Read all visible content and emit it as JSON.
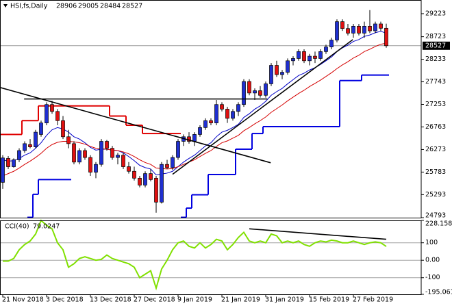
{
  "chart_data": [
    {
      "type": "candlestick",
      "title": "HSI,fs,Daily",
      "categories": [
        "21 Nov 2018",
        null,
        null,
        null,
        null,
        null,
        null,
        null,
        "3 Dec 2018",
        null,
        null,
        null,
        null,
        null,
        null,
        null,
        "13 Dec 2018",
        null,
        null,
        null,
        null,
        null,
        null,
        null,
        "27 Dec 2018",
        null,
        null,
        null,
        null,
        null,
        null,
        null,
        "9 Jan 2019",
        null,
        null,
        null,
        null,
        null,
        null,
        null,
        "21 Jan 2019",
        null,
        null,
        null,
        null,
        null,
        null,
        null,
        "31 Jan 2019",
        null,
        null,
        null,
        null,
        null,
        null,
        null,
        "15 Feb 2019",
        null,
        null,
        null,
        null,
        null,
        null,
        null,
        "27 Feb 2019",
        null,
        null,
        null,
        null,
        null,
        null
      ],
      "ohlc": [
        [
          25560,
          26150,
          25420,
          26090
        ],
        [
          26080,
          26130,
          25850,
          25900
        ],
        [
          25900,
          26080,
          25880,
          26050
        ],
        [
          26050,
          26300,
          26000,
          26250
        ],
        [
          26250,
          26450,
          26200,
          26400
        ],
        [
          26380,
          26500,
          26300,
          26330
        ],
        [
          26330,
          26700,
          26300,
          26650
        ],
        [
          26600,
          26900,
          26550,
          26850
        ],
        [
          26850,
          27300,
          26800,
          27250
        ],
        [
          27250,
          27330,
          27050,
          27100
        ],
        [
          27100,
          27150,
          26800,
          26900
        ],
        [
          26900,
          27000,
          26500,
          26550
        ],
        [
          26550,
          26700,
          26300,
          26400
        ],
        [
          26400,
          26450,
          25950,
          26000
        ],
        [
          26000,
          26300,
          25950,
          26250
        ],
        [
          26250,
          26300,
          26050,
          26100
        ],
        [
          26100,
          26150,
          25700,
          25780
        ],
        [
          25780,
          26000,
          25650,
          25950
        ],
        [
          25950,
          26500,
          25900,
          26450
        ],
        [
          26450,
          26480,
          26250,
          26300
        ],
        [
          26300,
          26350,
          26050,
          26100
        ],
        [
          26100,
          26200,
          25950,
          26150
        ],
        [
          26150,
          26200,
          25850,
          25900
        ],
        [
          25900,
          26000,
          25750,
          25800
        ],
        [
          25800,
          25900,
          25600,
          25650
        ],
        [
          25650,
          25700,
          25450,
          25500
        ],
        [
          25500,
          25800,
          25450,
          25750
        ],
        [
          25750,
          25850,
          25580,
          25620
        ],
        [
          25650,
          25700,
          24900,
          25130
        ],
        [
          25130,
          26000,
          25100,
          25950
        ],
        [
          25950,
          26050,
          25850,
          25880
        ],
        [
          25880,
          26150,
          25830,
          26100
        ],
        [
          26100,
          26500,
          26050,
          26450
        ],
        [
          26450,
          26600,
          26350,
          26550
        ],
        [
          26550,
          26650,
          26400,
          26450
        ],
        [
          26450,
          26650,
          26350,
          26600
        ],
        [
          26600,
          26800,
          26550,
          26750
        ],
        [
          26750,
          26950,
          26700,
          26900
        ],
        [
          26900,
          26950,
          26800,
          26850
        ],
        [
          26850,
          27350,
          26800,
          27250
        ],
        [
          27250,
          27300,
          27100,
          27150
        ],
        [
          27150,
          27200,
          26850,
          26950
        ],
        [
          26950,
          27150,
          26900,
          27100
        ],
        [
          27100,
          27300,
          27000,
          27250
        ],
        [
          27250,
          27800,
          27200,
          27750
        ],
        [
          27750,
          27800,
          27450,
          27500
        ],
        [
          27500,
          27600,
          27350,
          27550
        ],
        [
          27550,
          27650,
          27400,
          27450
        ],
        [
          27450,
          27750,
          27400,
          27700
        ],
        [
          27700,
          28150,
          27650,
          28100
        ],
        [
          28100,
          28200,
          27850,
          27900
        ],
        [
          27900,
          28000,
          27800,
          27950
        ],
        [
          27950,
          28250,
          27900,
          28200
        ],
        [
          28200,
          28300,
          28100,
          28250
        ],
        [
          28250,
          28450,
          28200,
          28400
        ],
        [
          28400,
          28450,
          28150,
          28200
        ],
        [
          28200,
          28350,
          28100,
          28300
        ],
        [
          28300,
          28400,
          28150,
          28250
        ],
        [
          28250,
          28450,
          28200,
          28400
        ],
        [
          28400,
          28550,
          28350,
          28500
        ],
        [
          28500,
          28700,
          28450,
          28650
        ],
        [
          28650,
          29100,
          28600,
          29050
        ],
        [
          29050,
          29100,
          28850,
          28900
        ],
        [
          28900,
          29000,
          28750,
          28800
        ],
        [
          28800,
          29000,
          28700,
          28950
        ],
        [
          28950,
          29000,
          28750,
          28800
        ],
        [
          28800,
          29050,
          28700,
          28950
        ],
        [
          28950,
          29300,
          28800,
          28850
        ],
        [
          28850,
          29050,
          28800,
          29000
        ],
        [
          29000,
          29050,
          28850,
          28906
        ],
        [
          28906,
          29005,
          28484,
          28527
        ]
      ],
      "up_color": "#1f2fd0",
      "down_color": "#e01010",
      "lines": [
        {
          "color": "#0000c8",
          "values": [
            26050,
            26020,
            26030,
            26080,
            26150,
            26200,
            26300,
            26420,
            26580,
            26700,
            26750,
            26720,
            26650,
            26550,
            26500,
            26420,
            26320,
            26260,
            26280,
            26280,
            26260,
            26250,
            26200,
            26120,
            26030,
            25930,
            25880,
            25850,
            25720,
            25740,
            25760,
            25800,
            25900,
            26000,
            26080,
            26150,
            26250,
            26350,
            26420,
            26550,
            26650,
            26690,
            26750,
            26820,
            26970,
            27050,
            27150,
            27220,
            27320,
            27450,
            27530,
            27600,
            27700,
            27790,
            27880,
            27930,
            28000,
            28050,
            28120,
            28200,
            28280,
            28400,
            28480,
            28540,
            28620,
            28660,
            28730,
            28760,
            28810,
            28840,
            28800
          ]
        },
        {
          "color": "#d40000",
          "values": [
            25700,
            25750,
            25800,
            25870,
            25950,
            26020,
            26100,
            26190,
            26300,
            26380,
            26430,
            26450,
            26450,
            26440,
            26420,
            26390,
            26340,
            26300,
            26290,
            26280,
            26260,
            26250,
            26220,
            26180,
            26120,
            26050,
            25990,
            25950,
            25870,
            25860,
            25850,
            25860,
            25900,
            25950,
            26000,
            26050,
            26120,
            26190,
            26250,
            26340,
            26420,
            26460,
            26520,
            26580,
            26680,
            26750,
            26830,
            26900,
            26980,
            27080,
            27160,
            27240,
            27330,
            27410,
            27490,
            27560,
            27640,
            27710,
            27780,
            27860,
            27940,
            28030,
            28110,
            28180,
            28260,
            28320,
            28400,
            28450,
            28510,
            28560,
            28580
          ]
        }
      ],
      "steps": [
        {
          "color": "#e00000",
          "values": [
            26600,
            26600,
            26600,
            26600,
            26900,
            26900,
            26900,
            27220,
            27220,
            27220,
            27220,
            27220,
            27220,
            27220,
            27220,
            27220,
            27220,
            27220,
            27220,
            27220,
            27000,
            27000,
            27000,
            26800,
            26800,
            26800,
            26620,
            26620,
            26620,
            26620,
            26620,
            26620,
            26620,
            null,
            null,
            null,
            null,
            null,
            null,
            null,
            null,
            null,
            null,
            null,
            null,
            null,
            null,
            null,
            null,
            null,
            null,
            null,
            null,
            null,
            null,
            null,
            null,
            null,
            null,
            null,
            null,
            null,
            null,
            null,
            null,
            null,
            null,
            null,
            null,
            null,
            null
          ]
        },
        {
          "color": "#0000e0",
          "values": [
            null,
            null,
            null,
            null,
            null,
            24800,
            25300,
            25620,
            25620,
            25620,
            25620,
            25620,
            25620,
            null,
            null,
            null,
            null,
            null,
            null,
            null,
            null,
            null,
            null,
            null,
            null,
            null,
            null,
            null,
            null,
            null,
            null,
            null,
            null,
            24800,
            25000,
            25290,
            25290,
            25290,
            25730,
            25730,
            25730,
            25730,
            25730,
            26280,
            26280,
            26280,
            26620,
            26620,
            26770,
            26770,
            26770,
            26770,
            26770,
            26770,
            26770,
            26770,
            26770,
            26770,
            26770,
            26770,
            26770,
            26770,
            27770,
            27770,
            27770,
            27770,
            27890,
            27890,
            27890,
            27890,
            27890
          ]
        }
      ],
      "trendlines": [
        {
          "x": [
            -0.5,
            48.9
          ],
          "values": [
            27620,
            25985
          ]
        },
        {
          "x": [
            3.9,
            48.3
          ],
          "values": [
            27370,
            27370
          ]
        },
        {
          "x": [
            31,
            63.9
          ],
          "values": [
            25735,
            28660
          ]
        }
      ],
      "ylim": [
        24793,
        29520
      ],
      "yticks": [
        29223,
        28723,
        28233,
        27743,
        27253,
        26763,
        26273,
        25783,
        25293,
        24793
      ]
    },
    {
      "type": "line",
      "title": "CCI(40)",
      "color": "#80e000",
      "values": [
        -5,
        -5,
        10,
        60,
        90,
        110,
        150,
        228,
        200,
        180,
        100,
        60,
        -40,
        -20,
        10,
        20,
        10,
        0,
        5,
        30,
        10,
        0,
        -10,
        -20,
        -40,
        -100,
        -80,
        -60,
        -160,
        -50,
        0,
        60,
        100,
        110,
        80,
        70,
        100,
        70,
        90,
        120,
        110,
        60,
        90,
        130,
        160,
        110,
        100,
        110,
        100,
        150,
        140,
        100,
        110,
        100,
        110,
        90,
        80,
        100,
        110,
        105,
        115,
        110,
        100,
        100,
        110,
        100,
        90,
        100,
        105,
        100,
        79.0247
      ],
      "ylim": [
        -195.061,
        228.1588
      ],
      "yticks": [
        228.1588,
        100,
        {
          "value": 0,
          "label": "0.00"
        },
        -100,
        -195.061
      ],
      "grid": true,
      "trendlines": [
        {
          "x": [
            45,
            70
          ],
          "values": [
            180,
            120
          ]
        }
      ]
    }
  ]
}
